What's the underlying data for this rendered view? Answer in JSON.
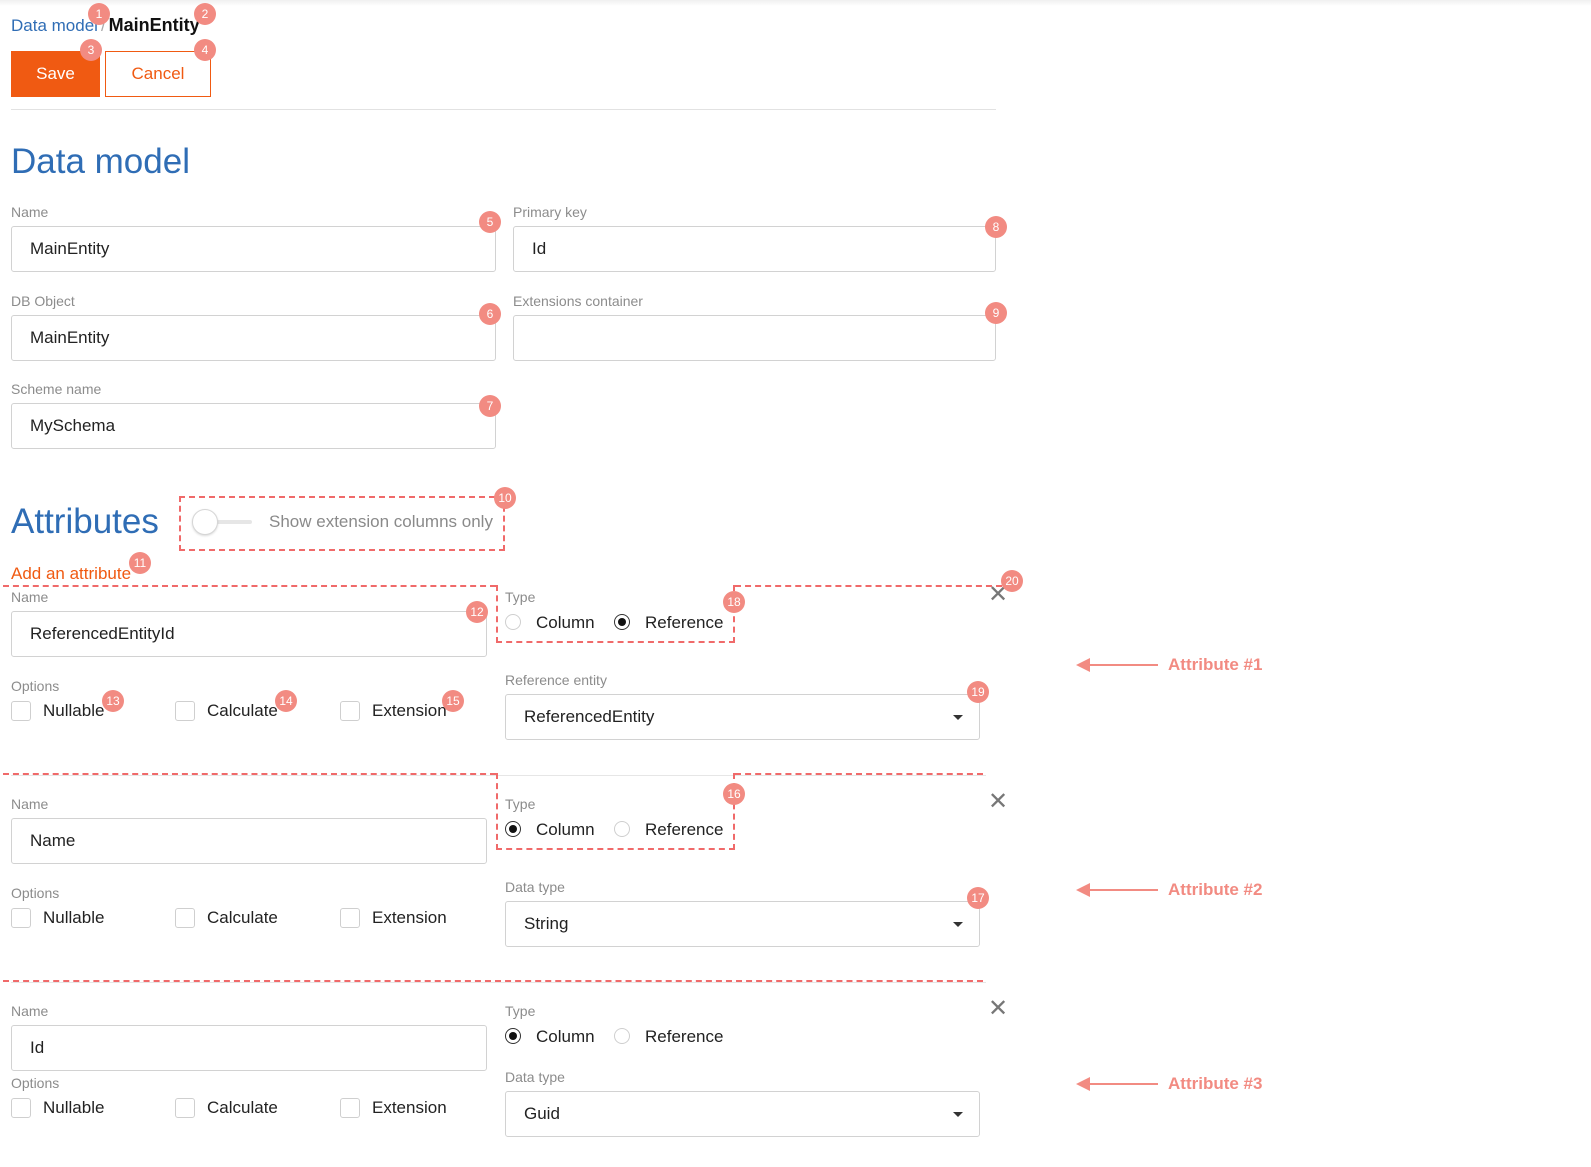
{
  "breadcrumb": {
    "parent": "Data model",
    "separator": "/",
    "current": "MainEntity"
  },
  "toolbar": {
    "save_label": "Save",
    "cancel_label": "Cancel"
  },
  "data_model": {
    "title": "Data model",
    "name_label": "Name",
    "name_value": "MainEntity",
    "db_object_label": "DB Object",
    "db_object_value": "MainEntity",
    "scheme_label": "Scheme name",
    "scheme_value": "MySchema",
    "primary_key_label": "Primary key",
    "primary_key_value": "Id",
    "ext_container_label": "Extensions container",
    "ext_container_value": ""
  },
  "attributes": {
    "title": "Attributes",
    "toggle_label": "Show extension columns only",
    "add_label": "Add an attribute",
    "items": [
      {
        "name_label": "Name",
        "name_value": "ReferencedEntityId",
        "type_label": "Type",
        "type_column": "Column",
        "type_reference": "Reference",
        "selected_type": "Reference",
        "options_label": "Options",
        "opt_nullable": "Nullable",
        "opt_calculate": "Calculate",
        "opt_extension": "Extension",
        "select_label": "Reference entity",
        "select_value": "ReferencedEntity",
        "callout": "Attribute #1"
      },
      {
        "name_label": "Name",
        "name_value": "Name",
        "type_label": "Type",
        "type_column": "Column",
        "type_reference": "Reference",
        "selected_type": "Column",
        "options_label": "Options",
        "opt_nullable": "Nullable",
        "opt_calculate": "Calculate",
        "opt_extension": "Extension",
        "select_label": "Data type",
        "select_value": "String",
        "callout": "Attribute #2"
      },
      {
        "name_label": "Name",
        "name_value": "Id",
        "type_label": "Type",
        "type_column": "Column",
        "type_reference": "Reference",
        "selected_type": "Column",
        "options_label": "Options",
        "opt_nullable": "Nullable",
        "opt_calculate": "Calculate",
        "opt_extension": "Extension",
        "select_label": "Data type",
        "select_value": "Guid",
        "callout": "Attribute #3"
      }
    ]
  },
  "markers": [
    "1",
    "2",
    "3",
    "4",
    "5",
    "6",
    "7",
    "8",
    "9",
    "10",
    "11",
    "12",
    "13",
    "14",
    "15",
    "16",
    "17",
    "18",
    "19",
    "20"
  ],
  "colors": {
    "accent": "#f05a12",
    "heading": "#2f6db5",
    "annotation": "#f06a6a"
  },
  "icons": {
    "close": "close-icon",
    "dropdown": "chevron-down-icon"
  }
}
